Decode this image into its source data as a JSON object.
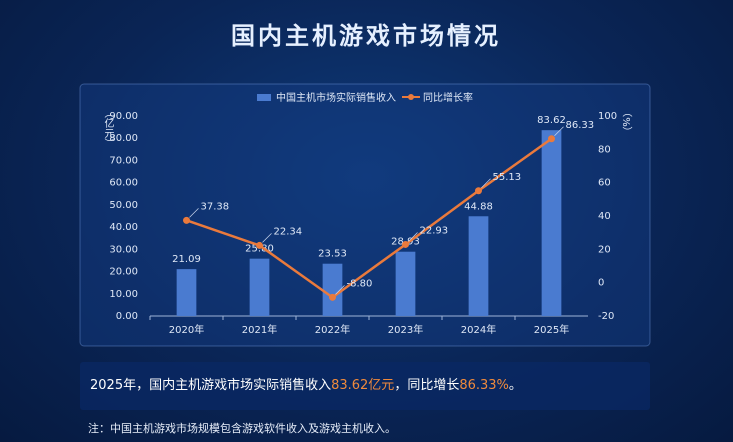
{
  "chart_data": {
    "type": "bar-line",
    "title": "国内主机游戏市场情况",
    "y_label": "（亿元）",
    "y2_label": "（%）",
    "categories": [
      "2020年",
      "2021年",
      "2022年",
      "2023年",
      "2024年",
      "2025年"
    ],
    "series": [
      {
        "name": "中国主机市场实际销售收入",
        "type": "bar",
        "color": "#4a7bd0",
        "values": [
          21.09,
          25.8,
          23.53,
          28.93,
          44.88,
          83.62
        ],
        "value_labels": [
          "21.09",
          "25.80",
          "23.53",
          "28.93",
          "44.88",
          "83.62"
        ]
      },
      {
        "name": "同比增长率",
        "type": "line",
        "axis": "y2",
        "color": "#ea7a3c",
        "values": [
          37.38,
          22.34,
          -8.8,
          22.93,
          55.13,
          86.33
        ],
        "value_labels": [
          "37.38",
          "22.34",
          "-8.80",
          "22.93",
          "55.13",
          "86.33"
        ]
      }
    ],
    "ylim": [
      0,
      90
    ],
    "yticks": [
      {
        "value": 0,
        "label": "0.00"
      },
      {
        "value": 10,
        "label": "10.00"
      },
      {
        "value": 20,
        "label": "20.00"
      },
      {
        "value": 30,
        "label": "30.00"
      },
      {
        "value": 40,
        "label": "40.00"
      },
      {
        "value": 50,
        "label": "50.00"
      },
      {
        "value": 60,
        "label": "60.00"
      },
      {
        "value": 70,
        "label": "70.00"
      },
      {
        "value": 80,
        "label": "80.00"
      },
      {
        "value": 90,
        "label": "90.00"
      }
    ],
    "y2lim": [
      -20,
      100
    ],
    "y2ticks": [
      -20,
      0,
      20,
      40,
      60,
      80,
      100
    ],
    "grid": false,
    "legend": "top"
  },
  "summary": [
    "2025年，国内主机游戏市场实际销售收入",
    "83.62亿元",
    "，同比增长",
    "86.33%",
    "。"
  ],
  "note": "注：中国主机游戏市场规模包含游戏软件收入及游戏主机收入。"
}
